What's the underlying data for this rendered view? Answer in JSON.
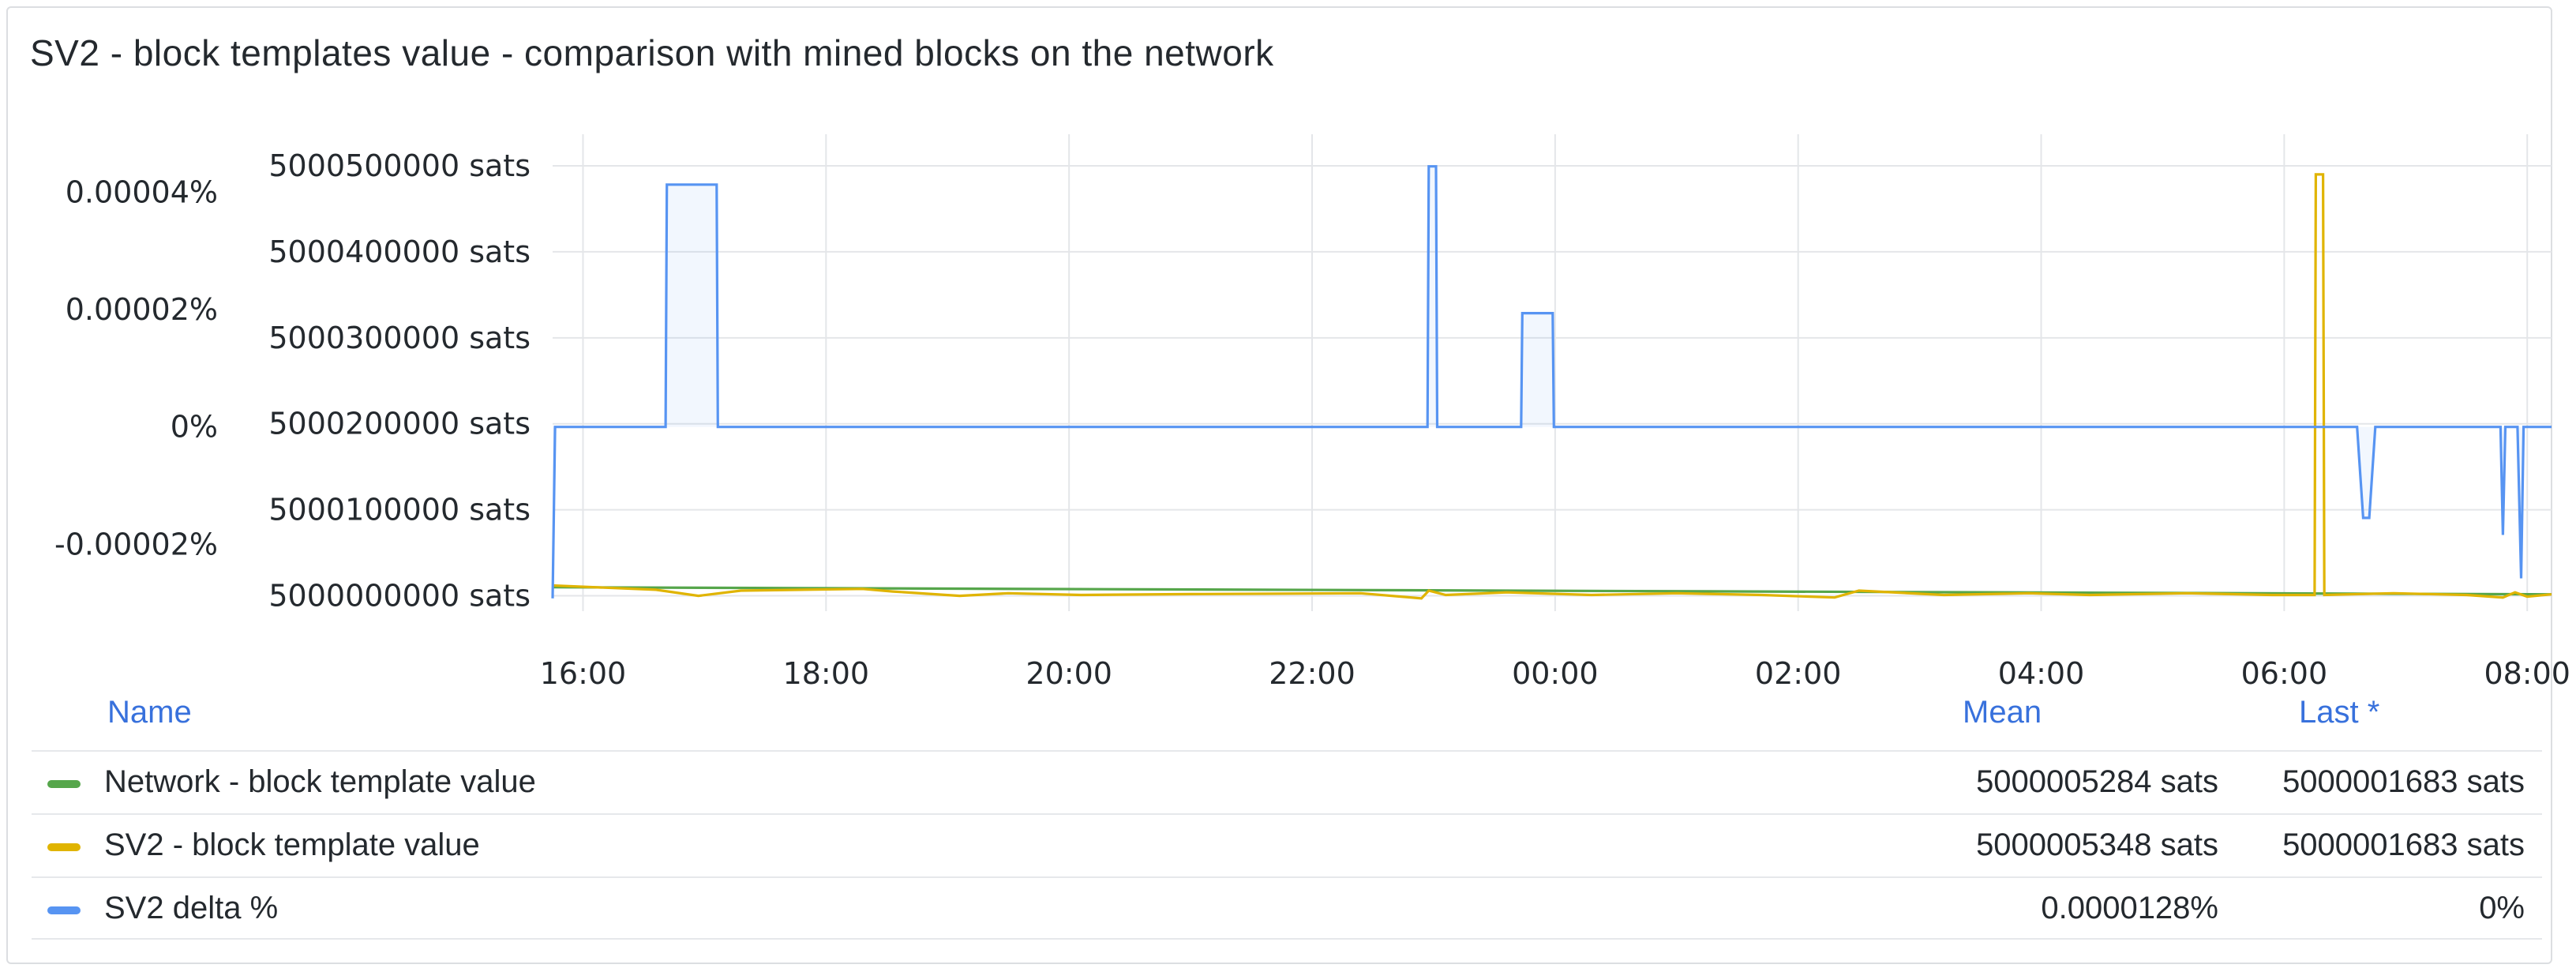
{
  "panel": {
    "title": "SV2 - block templates value - comparison with mined blocks on the network"
  },
  "chart_data": {
    "type": "line",
    "x_ticks": [
      "16:00",
      "18:00",
      "20:00",
      "22:00",
      "00:00",
      "02:00",
      "04:00",
      "06:00",
      "08:00"
    ],
    "x_tick_hours": [
      16,
      18,
      20,
      22,
      24,
      26,
      28,
      30,
      32
    ],
    "x_range_hours": [
      15.75,
      32.2
    ],
    "y_left": {
      "ticks": [
        "0.00004%",
        "0.00002%",
        "0%",
        "-0.00002%"
      ],
      "tick_values": [
        4e-05,
        2e-05,
        0,
        -2e-05
      ],
      "range": [
        -2.95e-05,
        4.45e-05
      ]
    },
    "y_right": {
      "ticks": [
        "5000500000 sats",
        "5000400000 sats",
        "5000300000 sats",
        "5000200000 sats",
        "5000100000 sats",
        "5000000000 sats"
      ],
      "tick_values": [
        5000500000,
        5000400000,
        5000300000,
        5000200000,
        5000100000,
        5000000000
      ],
      "range": [
        4999995000,
        5000500000
      ]
    },
    "grid": true,
    "series": [
      {
        "name": "Network - block template value",
        "color": "#56a64b",
        "axis": "right",
        "points": [
          [
            15.75,
            5000010000
          ],
          [
            32.2,
            5000001683
          ]
        ]
      },
      {
        "name": "SV2 - block template value",
        "color": "#e0b400",
        "axis": "right",
        "points": [
          [
            15.75,
            5000012000
          ],
          [
            16.6,
            5000007000
          ],
          [
            16.95,
            5000000000
          ],
          [
            17.3,
            5000006000
          ],
          [
            18.3,
            5000008000
          ],
          [
            18.55,
            5000005000
          ],
          [
            19.1,
            5000000000
          ],
          [
            19.5,
            5000003000
          ],
          [
            20.1,
            5000001000
          ],
          [
            21.0,
            5000002000
          ],
          [
            22.4,
            5000003000
          ],
          [
            22.9,
            4999997000
          ],
          [
            22.96,
            5000006000
          ],
          [
            23.1,
            5000001000
          ],
          [
            23.6,
            5000004000
          ],
          [
            24.3,
            5000001000
          ],
          [
            25.0,
            5000003000
          ],
          [
            25.7,
            5000001000
          ],
          [
            26.3,
            4999998000
          ],
          [
            26.5,
            5000006000
          ],
          [
            27.2,
            5000001000
          ],
          [
            27.9,
            5000003000
          ],
          [
            28.4,
            5000001000
          ],
          [
            29.2,
            5000003000
          ],
          [
            29.9,
            5000001000
          ],
          [
            30.25,
            5000001000
          ],
          [
            30.26,
            5000490000
          ],
          [
            30.32,
            5000490000
          ],
          [
            30.33,
            5000001000
          ],
          [
            30.9,
            5000003000
          ],
          [
            31.5,
            5000001000
          ],
          [
            31.8,
            4999998000
          ],
          [
            31.9,
            5000004000
          ],
          [
            32.0,
            4999999000
          ],
          [
            32.2,
            5000001683
          ]
        ]
      },
      {
        "name": "SV2 delta %",
        "color": "#5794f2",
        "axis": "left",
        "points": [
          [
            15.75,
            -2.92e-05
          ],
          [
            15.77,
            0
          ],
          [
            16.68,
            0
          ],
          [
            16.69,
            4.13e-05
          ],
          [
            17.1,
            4.13e-05
          ],
          [
            17.11,
            0
          ],
          [
            22.95,
            0
          ],
          [
            22.96,
            4.44e-05
          ],
          [
            23.02,
            4.44e-05
          ],
          [
            23.03,
            0
          ],
          [
            23.72,
            0
          ],
          [
            23.73,
            1.94e-05
          ],
          [
            23.98,
            1.94e-05
          ],
          [
            23.99,
            0
          ],
          [
            30.6,
            0
          ],
          [
            30.65,
            -1.55e-05
          ],
          [
            30.7,
            -1.55e-05
          ],
          [
            30.75,
            0
          ],
          [
            31.78,
            0
          ],
          [
            31.8,
            -1.84e-05
          ],
          [
            31.82,
            0
          ],
          [
            31.92,
            0
          ],
          [
            31.95,
            -2.58e-05
          ],
          [
            31.97,
            0
          ],
          [
            32.2,
            0
          ]
        ]
      }
    ]
  },
  "legend": {
    "headers": {
      "name": "Name",
      "mean": "Mean",
      "last": "Last *"
    },
    "rows": [
      {
        "name": "Network - block template value",
        "color": "#56a64b",
        "mean": "5000005284 sats",
        "last": "5000001683 sats"
      },
      {
        "name": "SV2 - block template value",
        "color": "#e0b400",
        "mean": "5000005348 sats",
        "last": "5000001683 sats"
      },
      {
        "name": "SV2 delta %",
        "color": "#5794f2",
        "mean": "0.0000128%",
        "last": "0%"
      }
    ]
  }
}
